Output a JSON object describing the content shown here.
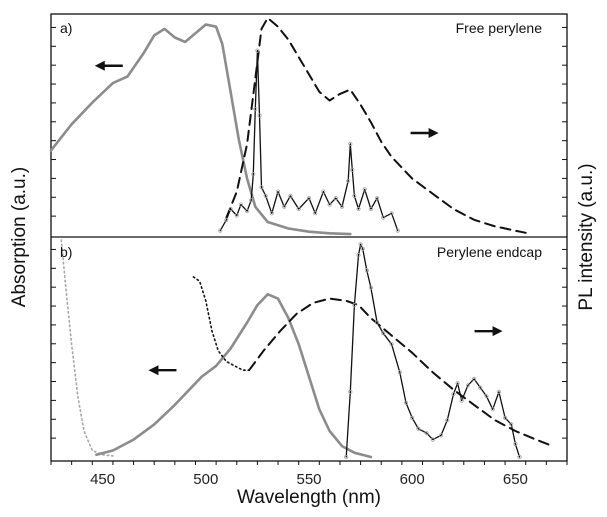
{
  "chart_data": {
    "type": "line",
    "xlabel": "Wavelength (nm)",
    "ylabel_left": "Absorption (a.u.)",
    "ylabel_right": "PL intensity (a.u.)",
    "xlim": [
      425,
      675
    ],
    "x_ticks": [
      450,
      500,
      550,
      600,
      650
    ],
    "grid": false,
    "colors": {
      "absorption": "#8c8c8c",
      "pl": "#111111",
      "scatter": "#a6a6a6",
      "arrows": "#111111"
    },
    "panels": [
      {
        "label": "a)",
        "title": "Free perylene",
        "arrows": [
          {
            "x": 453,
            "y": 0.78,
            "direction": "left"
          },
          {
            "x": 606,
            "y": 0.47,
            "direction": "right"
          }
        ],
        "series": [
          {
            "style": "solid-gray",
            "x": [
              425,
              435,
              445,
              455,
              462,
              470,
              475,
              480,
              485,
              490,
              495,
              500,
              505,
              508,
              512,
              516,
              520,
              524,
              530,
              540,
              550,
              560,
              570
            ],
            "y": [
              0.39,
              0.51,
              0.61,
              0.7,
              0.73,
              0.84,
              0.92,
              0.95,
              0.91,
              0.89,
              0.93,
              0.97,
              0.96,
              0.88,
              0.66,
              0.44,
              0.26,
              0.13,
              0.06,
              0.03,
              0.015,
              0.008,
              0.004
            ]
          },
          {
            "style": "dashed-black",
            "x": [
              510,
              515,
              520,
              524,
              527,
              530,
              535,
              540,
              545,
              550,
              555,
              560,
              565,
              570,
              575,
              580,
              585,
              590,
              600,
              610,
              620,
              630,
              640,
              650,
              655
            ],
            "y": [
              0.08,
              0.2,
              0.42,
              0.72,
              0.95,
              1.0,
              0.96,
              0.9,
              0.82,
              0.74,
              0.66,
              0.62,
              0.65,
              0.67,
              0.6,
              0.52,
              0.43,
              0.36,
              0.26,
              0.19,
              0.12,
              0.07,
              0.04,
              0.02,
              0.01
            ]
          },
          {
            "style": "solid-black-noisy",
            "x": [
              507,
              510,
              512,
              515,
              517,
              520,
              522,
              523,
              524,
              525,
              526,
              527,
              529,
              532,
              535,
              538,
              541,
              545,
              550,
              553,
              557,
              560,
              563,
              566,
              569,
              570,
              571,
              572,
              574,
              577,
              580,
              583,
              586,
              590,
              593
            ],
            "y": [
              0.02,
              0.07,
              0.12,
              0.09,
              0.14,
              0.11,
              0.16,
              0.28,
              0.58,
              0.85,
              0.55,
              0.22,
              0.18,
              0.1,
              0.2,
              0.13,
              0.18,
              0.12,
              0.17,
              0.1,
              0.2,
              0.14,
              0.17,
              0.13,
              0.25,
              0.42,
              0.3,
              0.18,
              0.12,
              0.21,
              0.12,
              0.17,
              0.08,
              0.1,
              0.02
            ]
          }
        ]
      },
      {
        "label": "b)",
        "title": "Perylene endcap",
        "arrows": [
          {
            "x": 479,
            "y": 0.4,
            "direction": "left"
          },
          {
            "x": 637,
            "y": 0.58,
            "direction": "right"
          }
        ],
        "series": [
          {
            "style": "dotted-gray",
            "x": [
              430,
              432,
              435,
              438,
              441,
              445,
              450,
              455
            ],
            "y": [
              1.0,
              0.8,
              0.52,
              0.28,
              0.12,
              0.03,
              0.01,
              0.005
            ]
          },
          {
            "style": "solid-gray",
            "x": [
              447,
              455,
              465,
              475,
              485,
              492,
              498,
              505,
              512,
              520,
              525,
              530,
              535,
              540,
              545,
              550,
              555,
              560,
              566,
              572,
              580
            ],
            "y": [
              0.01,
              0.03,
              0.08,
              0.15,
              0.24,
              0.31,
              0.37,
              0.42,
              0.5,
              0.62,
              0.7,
              0.75,
              0.73,
              0.64,
              0.52,
              0.37,
              0.22,
              0.12,
              0.05,
              0.02,
              0.0
            ]
          },
          {
            "style": "dotted-black",
            "x": [
              494,
              497,
              500,
              503,
              506,
              510,
              514,
              518,
              521
            ],
            "y": [
              0.83,
              0.81,
              0.72,
              0.58,
              0.49,
              0.44,
              0.42,
              0.4,
              0.4
            ]
          },
          {
            "style": "dashed-black",
            "x": [
              521,
              528,
              536,
              544,
              552,
              560,
              568,
              574,
              580,
              590,
              600,
              610,
              620,
              630,
              640,
              650,
              660,
              668
            ],
            "y": [
              0.4,
              0.49,
              0.58,
              0.66,
              0.71,
              0.73,
              0.72,
              0.7,
              0.64,
              0.56,
              0.48,
              0.39,
              0.31,
              0.24,
              0.17,
              0.12,
              0.08,
              0.05
            ]
          },
          {
            "style": "solid-black-noisy",
            "x": [
              568,
              570,
              572,
              574,
              575,
              576,
              578,
              580,
              583,
              586,
              590,
              594,
              597,
              600,
              603,
              607,
              610,
              614,
              617,
              620,
              622,
              624,
              627,
              630,
              633,
              636,
              639,
              642,
              645,
              648,
              650,
              652
            ],
            "y": [
              0.0,
              0.3,
              0.7,
              0.93,
              0.98,
              0.96,
              0.86,
              0.78,
              0.62,
              0.57,
              0.52,
              0.39,
              0.25,
              0.18,
              0.13,
              0.11,
              0.08,
              0.1,
              0.17,
              0.29,
              0.34,
              0.26,
              0.33,
              0.36,
              0.32,
              0.28,
              0.22,
              0.3,
              0.18,
              0.15,
              0.06,
              0.0
            ]
          }
        ]
      }
    ]
  }
}
